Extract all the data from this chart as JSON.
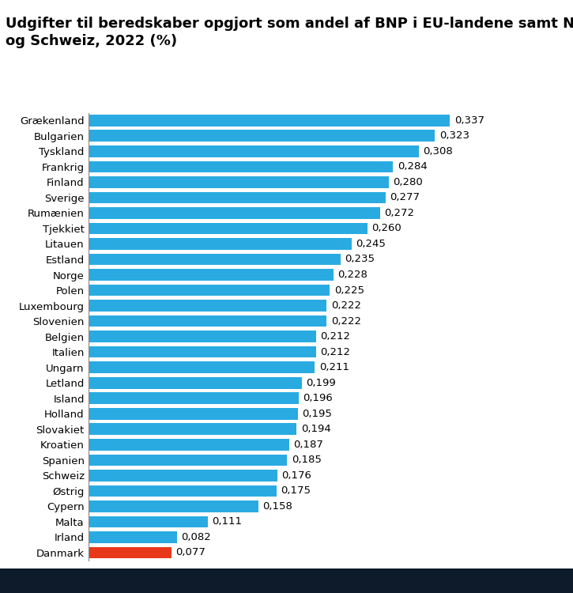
{
  "title_line1": "Udgifter til beredskaber opgjort som andel af BNP i EU-landene samt Norge, Island",
  "title_line2": "og Schweiz, 2022 (%)",
  "countries": [
    "Grækenland",
    "Bulgarien",
    "Tyskland",
    "Frankrig",
    "Finland",
    "Sverige",
    "Rumænien",
    "Tjekkiet",
    "Litauen",
    "Estland",
    "Norge",
    "Polen",
    "Luxembourg",
    "Slovenien",
    "Belgien",
    "Italien",
    "Ungarn",
    "Letland",
    "Island",
    "Holland",
    "Slovakiet",
    "Kroatien",
    "Spanien",
    "Schweiz",
    "Østrig",
    "Cypern",
    "Malta",
    "Irland",
    "Danmark"
  ],
  "values": [
    0.337,
    0.323,
    0.308,
    0.284,
    0.28,
    0.277,
    0.272,
    0.26,
    0.245,
    0.235,
    0.228,
    0.225,
    0.222,
    0.222,
    0.212,
    0.212,
    0.211,
    0.199,
    0.196,
    0.195,
    0.194,
    0.187,
    0.185,
    0.176,
    0.175,
    0.158,
    0.111,
    0.082,
    0.077
  ],
  "bar_colors": [
    "#29ABE2",
    "#29ABE2",
    "#29ABE2",
    "#29ABE2",
    "#29ABE2",
    "#29ABE2",
    "#29ABE2",
    "#29ABE2",
    "#29ABE2",
    "#29ABE2",
    "#29ABE2",
    "#29ABE2",
    "#29ABE2",
    "#29ABE2",
    "#29ABE2",
    "#29ABE2",
    "#29ABE2",
    "#29ABE2",
    "#29ABE2",
    "#29ABE2",
    "#29ABE2",
    "#29ABE2",
    "#29ABE2",
    "#29ABE2",
    "#29ABE2",
    "#29ABE2",
    "#29ABE2",
    "#29ABE2",
    "#E8381A"
  ],
  "label_color": "#000000",
  "background_color": "#FFFFFF",
  "bottom_background": "#0d1b2a",
  "xlim": [
    0,
    0.385
  ],
  "bar_height": 0.75,
  "title_fontsize": 13,
  "label_fontsize": 9.5,
  "value_fontsize": 9.5
}
